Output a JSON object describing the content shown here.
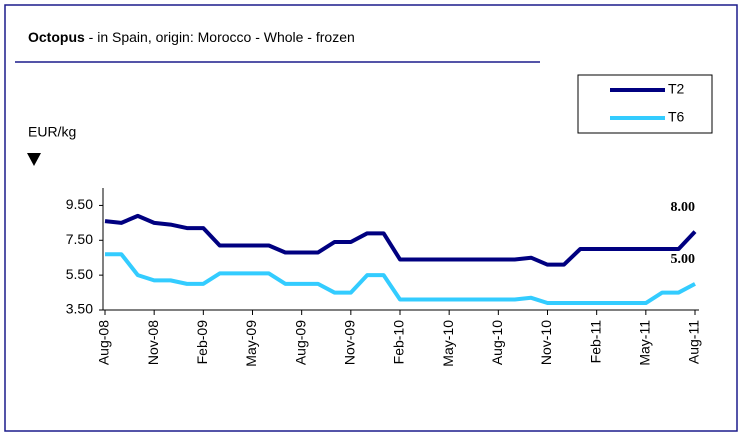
{
  "chart_data": {
    "type": "line",
    "title": {
      "bold": "Octopus",
      "rest": " - in Spain, origin: Morocco - Whole - frozen"
    },
    "y_label": "EUR/kg",
    "categories": [
      "Aug-08",
      null,
      null,
      "Nov-08",
      null,
      null,
      "Feb-09",
      null,
      null,
      "May-09",
      null,
      null,
      "Aug-09",
      null,
      null,
      "Nov-09",
      null,
      null,
      "Feb-10",
      null,
      null,
      "May-10",
      null,
      null,
      "Aug-10",
      null,
      null,
      "Nov-10",
      null,
      null,
      "Feb-11",
      null,
      null,
      "May-11",
      null,
      null,
      "Aug-11"
    ],
    "series": [
      {
        "name": "T2",
        "color": "#000080",
        "values": [
          8.6,
          8.5,
          8.9,
          8.5,
          8.4,
          8.2,
          8.2,
          7.2,
          7.2,
          7.2,
          7.2,
          6.8,
          6.8,
          6.8,
          7.4,
          7.4,
          7.9,
          7.9,
          6.4,
          6.4,
          6.4,
          6.4,
          6.4,
          6.4,
          6.4,
          6.4,
          6.5,
          6.1,
          6.1,
          7.0,
          7.0,
          7.0,
          7.0,
          7.0,
          7.0,
          7.0,
          8.0
        ],
        "value_labels": [
          null,
          null,
          null,
          null,
          null,
          null,
          null,
          null,
          null,
          null,
          null,
          null,
          null,
          null,
          null,
          null,
          null,
          null,
          null,
          null,
          null,
          null,
          null,
          null,
          null,
          null,
          null,
          null,
          null,
          null,
          null,
          null,
          null,
          null,
          null,
          null,
          "8.00"
        ]
      },
      {
        "name": "T6",
        "color": "#33ccff",
        "values": [
          6.7,
          6.7,
          5.5,
          5.2,
          5.2,
          5.0,
          5.0,
          5.6,
          5.6,
          5.6,
          5.6,
          5.0,
          5.0,
          5.0,
          4.5,
          4.5,
          5.5,
          5.5,
          4.1,
          4.1,
          4.1,
          4.1,
          4.1,
          4.1,
          4.1,
          4.1,
          4.2,
          3.9,
          3.9,
          3.9,
          3.9,
          3.9,
          3.9,
          3.9,
          4.5,
          4.5,
          5.0
        ],
        "value_labels": [
          null,
          null,
          null,
          null,
          null,
          null,
          null,
          null,
          null,
          null,
          null,
          null,
          null,
          null,
          null,
          null,
          null,
          null,
          null,
          null,
          null,
          null,
          null,
          null,
          null,
          null,
          null,
          null,
          null,
          null,
          null,
          null,
          null,
          null,
          null,
          null,
          "5.00"
        ]
      }
    ],
    "ylim": [
      3.5,
      10.5
    ],
    "yticks": [
      {
        "value": 3.5,
        "label": "3.50"
      },
      {
        "value": 5.5,
        "label": "5.50"
      },
      {
        "value": 7.5,
        "label": "7.50"
      },
      {
        "value": 9.5,
        "label": "9.50"
      }
    ],
    "legend": "top-right"
  }
}
